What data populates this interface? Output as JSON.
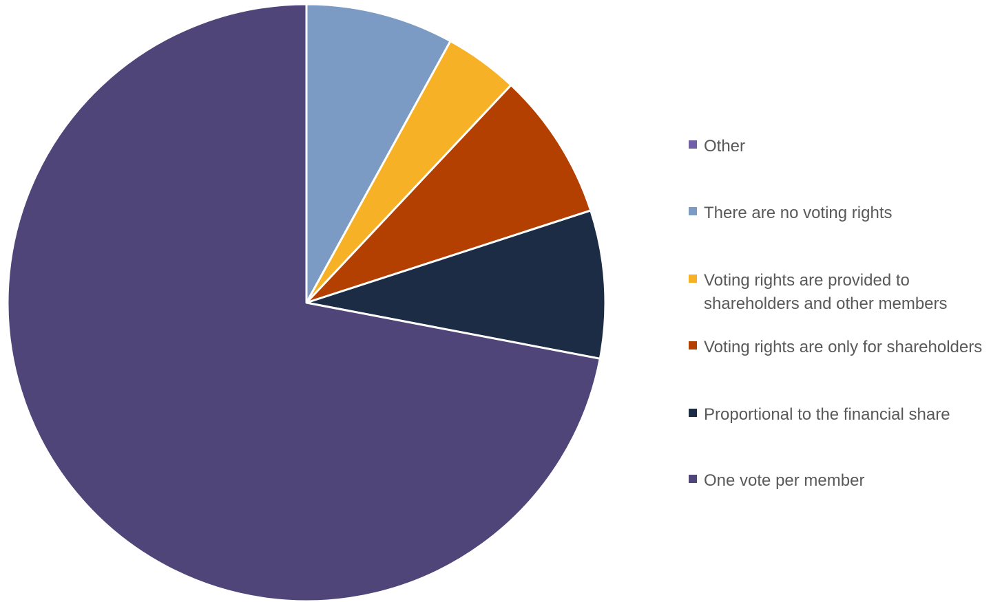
{
  "chart_data": {
    "type": "pie",
    "title": "",
    "start_angle_deg": 0,
    "direction": "clockwise",
    "slices": [
      {
        "label": "There are no voting rights",
        "value": 8,
        "color": "#7B9AC4"
      },
      {
        "label": "Voting rights are provided to shareholders and other members",
        "value": 4,
        "color": "#F7B126"
      },
      {
        "label": "Voting rights are only for shareholders",
        "value": 8,
        "color": "#B33F00"
      },
      {
        "label": "Proportional to the financial share",
        "value": 8,
        "color": "#1C2C44"
      },
      {
        "label": "One vote per member",
        "value": 72,
        "color": "#4F4579"
      },
      {
        "label": "Other",
        "value": 0,
        "color": "#7160A8"
      }
    ],
    "legend": {
      "position": "right",
      "items": [
        {
          "label": "Other",
          "color": "#7160A8"
        },
        {
          "label": "There are no voting rights",
          "color": "#7B9AC4"
        },
        {
          "label": "Voting rights are provided to shareholders and other members",
          "color": "#F7B126"
        },
        {
          "label": "Voting rights are only for shareholders",
          "color": "#B33F00"
        },
        {
          "label": "Proportional to the financial share",
          "color": "#1C2C44"
        },
        {
          "label": "One vote per member",
          "color": "#4F4579"
        }
      ]
    }
  }
}
